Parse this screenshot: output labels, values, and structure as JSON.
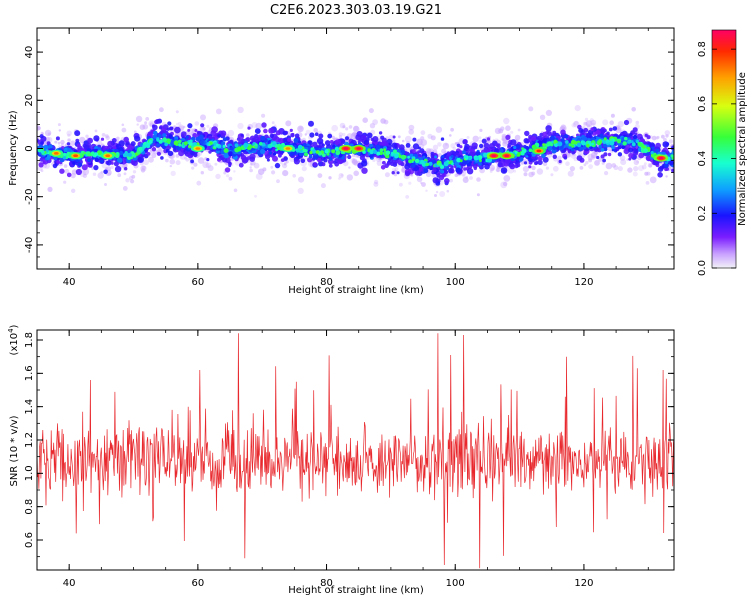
{
  "title": "C2E6.2023.303.03.19.G21",
  "colors": {
    "snr_line": "#e8282d",
    "colormap": [
      "#f2f2f8",
      "#7a1dff",
      "#1a14ff",
      "#0ea0ff",
      "#18ffd0",
      "#36ff3a",
      "#d8ff10",
      "#ffa000",
      "#ff2a00",
      "#ff0064"
    ]
  },
  "chart_data": [
    {
      "type": "heatmap",
      "xlabel": "Height of straight line (km)",
      "ylabel": "Frequency (Hz)",
      "xlim": [
        35,
        134
      ],
      "ylim": [
        -50,
        50
      ],
      "xticks": [
        40,
        60,
        80,
        100,
        120
      ],
      "yticks": [
        -40,
        -20,
        0,
        20,
        40
      ],
      "colorbar": {
        "label": "Normalized spectral amplitude",
        "range": [
          0,
          0.87
        ],
        "ticks": [
          "0.0",
          "0.2",
          "0.4",
          "0.6",
          "0.8"
        ]
      },
      "ridge_center_hz": {
        "x": [
          35,
          40,
          45,
          50,
          53,
          57,
          62,
          65,
          70,
          75,
          80,
          85,
          90,
          95,
          98,
          102,
          106,
          110,
          115,
          120,
          125,
          128,
          131,
          134
        ],
        "y": [
          -1,
          -3,
          -2,
          -3,
          4,
          2,
          2,
          -1,
          2,
          0,
          -2,
          0,
          -2,
          -6,
          -7,
          -4,
          -3,
          -2,
          2,
          2,
          3,
          3,
          -3,
          -4
        ]
      },
      "peak_spots_hz": [
        {
          "x": 38,
          "y": -2,
          "v": 0.72
        },
        {
          "x": 41,
          "y": -3,
          "v": 0.75
        },
        {
          "x": 46,
          "y": -3,
          "v": 0.72
        },
        {
          "x": 60,
          "y": 0,
          "v": 0.7
        },
        {
          "x": 74,
          "y": 0,
          "v": 0.7
        },
        {
          "x": 83,
          "y": 0,
          "v": 0.87
        },
        {
          "x": 85,
          "y": 0,
          "v": 0.85
        },
        {
          "x": 106,
          "y": -3,
          "v": 0.87
        },
        {
          "x": 108,
          "y": -3,
          "v": 0.85
        },
        {
          "x": 113,
          "y": -1,
          "v": 0.78
        },
        {
          "x": 132,
          "y": -4,
          "v": 0.87
        }
      ]
    },
    {
      "type": "line",
      "xlabel": "Height of straight line (km)",
      "ylabel": "SNR (10 * v/v)",
      "multiplier": "(x10",
      "multiplier_exp": "4",
      "multiplier_close": ")",
      "xlim": [
        35,
        134
      ],
      "ylim": [
        0.42,
        1.86
      ],
      "xticks": [
        40,
        60,
        80,
        100,
        120
      ],
      "yticks": [
        "0.6",
        "0.8",
        "1.0",
        "1.2",
        "1.4",
        "1.6",
        "1.8"
      ],
      "mean": 1.08,
      "spikes": [
        {
          "x": 66.3,
          "y": 1.84
        },
        {
          "x": 67.3,
          "y": 0.49
        },
        {
          "x": 97.3,
          "y": 1.84
        },
        {
          "x": 98.3,
          "y": 0.45
        },
        {
          "x": 101.3,
          "y": 1.83
        },
        {
          "x": 103.8,
          "y": 0.43
        },
        {
          "x": 99.3,
          "y": 1.71
        },
        {
          "x": 60.3,
          "y": 1.62
        },
        {
          "x": 117.3,
          "y": 1.7
        },
        {
          "x": 128.3,
          "y": 1.63
        },
        {
          "x": 43.3,
          "y": 1.56
        },
        {
          "x": 75.3,
          "y": 1.55
        },
        {
          "x": 132.3,
          "y": 1.62
        }
      ]
    }
  ]
}
